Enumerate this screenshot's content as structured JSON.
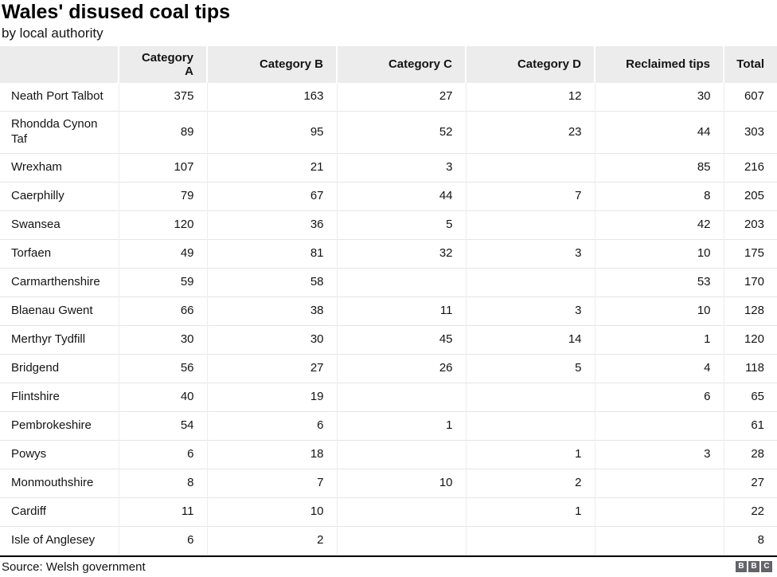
{
  "header": {
    "title": "Wales' disused coal tips",
    "subtitle": "by local authority"
  },
  "footer": {
    "source": "Source: Welsh government",
    "logo_letters": [
      "B",
      "B",
      "C"
    ]
  },
  "colors": {
    "header_bg": "#ececec",
    "row_border": "#e6e6e6",
    "divider": "#000000",
    "logo_bg": "#63636a",
    "text": "#141414"
  },
  "chart_data": {
    "type": "table",
    "title": "Wales' disused coal tips",
    "subtitle": "by local authority",
    "source": "Source: Welsh government",
    "columns": [
      "",
      "Category A",
      "Category B",
      "Category C",
      "Category D",
      "Reclaimed tips",
      "Total"
    ],
    "rows": [
      [
        "Neath Port Talbot",
        "375",
        "163",
        "27",
        "12",
        "30",
        "607"
      ],
      [
        "Rhondda Cynon Taf",
        "89",
        "95",
        "52",
        "23",
        "44",
        "303"
      ],
      [
        "Wrexham",
        "107",
        "21",
        "3",
        "",
        "85",
        "216"
      ],
      [
        "Caerphilly",
        "79",
        "67",
        "44",
        "7",
        "8",
        "205"
      ],
      [
        "Swansea",
        "120",
        "36",
        "5",
        "",
        "42",
        "203"
      ],
      [
        "Torfaen",
        "49",
        "81",
        "32",
        "3",
        "10",
        "175"
      ],
      [
        "Carmarthenshire",
        "59",
        "58",
        "",
        "",
        "53",
        "170"
      ],
      [
        "Blaenau Gwent",
        "66",
        "38",
        "11",
        "3",
        "10",
        "128"
      ],
      [
        "Merthyr Tydfill",
        "30",
        "30",
        "45",
        "14",
        "1",
        "120"
      ],
      [
        "Bridgend",
        "56",
        "27",
        "26",
        "5",
        "4",
        "118"
      ],
      [
        "Flintshire",
        "40",
        "19",
        "",
        "",
        "6",
        "65"
      ],
      [
        "Pembrokeshire",
        "54",
        "6",
        "1",
        "",
        "",
        "61"
      ],
      [
        "Powys",
        "6",
        "18",
        "",
        "1",
        "3",
        "28"
      ],
      [
        "Monmouthshire",
        "8",
        "7",
        "10",
        "2",
        "",
        "27"
      ],
      [
        "Cardiff",
        "11",
        "10",
        "",
        "1",
        "",
        "22"
      ],
      [
        "Isle of Anglesey",
        "6",
        "2",
        "",
        "",
        "",
        "8"
      ]
    ]
  }
}
